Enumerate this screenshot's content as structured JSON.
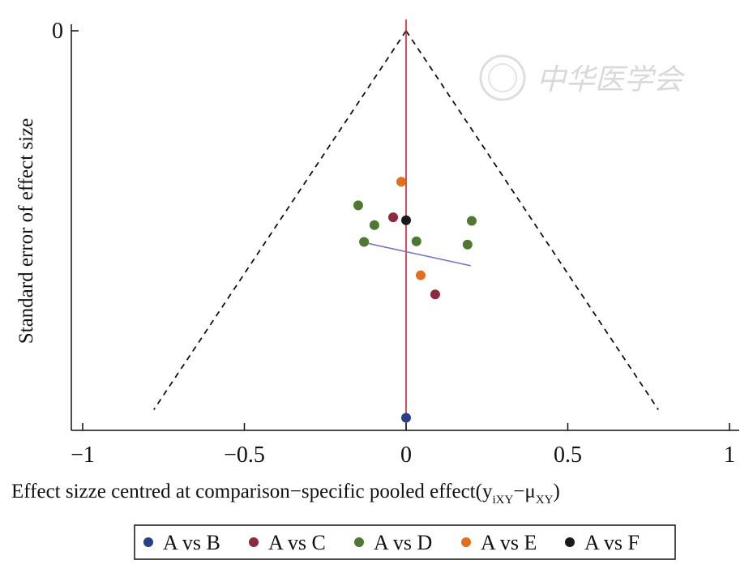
{
  "chart_data": {
    "type": "scatter",
    "title": "",
    "xlabel_main": "Effect sizze centred at comparison−specific pooled effect(y",
    "xlabel_sub1": "iXY",
    "xlabel_mid": "−μ",
    "xlabel_sub2": "XY",
    "xlabel_end": ")",
    "ylabel": "Standard error of effect size",
    "xlim": [
      -1,
      1
    ],
    "ylim": [
      0,
      1.2
    ],
    "y_reversed": true,
    "x_ticks": [
      {
        "value": -1,
        "label": "−1"
      },
      {
        "value": -0.5,
        "label": "−0.5"
      },
      {
        "value": 0,
        "label": "0"
      },
      {
        "value": 0.5,
        "label": "0.5"
      },
      {
        "value": 1,
        "label": "1"
      }
    ],
    "y_ticks": [
      {
        "value": 0,
        "label": "0"
      }
    ],
    "funnel": {
      "apex": [
        0,
        0
      ],
      "left_base": [
        -0.78,
        1.17
      ],
      "right_base": [
        0.78,
        1.17
      ],
      "style": "dashed",
      "color": "#111111"
    },
    "reference_line": {
      "x": 0,
      "color": "#d0202f"
    },
    "regression_line": {
      "from": [
        -0.145,
        0.6505
      ],
      "to": [
        0.2,
        0.7255
      ],
      "color": "#7b73c4"
    },
    "series": [
      {
        "name": "A vs B",
        "color": "#2b3f85",
        "points": [
          [
            0.0,
            1.195
          ]
        ]
      },
      {
        "name": "A vs C",
        "color": "#8e2a3f",
        "points": [
          [
            -0.04,
            0.576
          ],
          [
            0.09,
            0.814
          ]
        ]
      },
      {
        "name": "A vs D",
        "color": "#4f7832",
        "points": [
          [
            -0.148,
            0.539
          ],
          [
            -0.098,
            0.6
          ],
          [
            -0.13,
            0.652
          ],
          [
            0.032,
            0.65
          ],
          [
            0.203,
            0.587
          ],
          [
            0.19,
            0.66
          ]
        ]
      },
      {
        "name": "A vs E",
        "color": "#e07020",
        "points": [
          [
            -0.015,
            0.466
          ],
          [
            0.045,
            0.755
          ]
        ]
      },
      {
        "name": "A vs F",
        "color": "#1a1a1a",
        "points": [
          [
            0.0,
            0.585
          ]
        ]
      }
    ],
    "legend_position": "bottom-center"
  },
  "watermark": {
    "text": "中华医学会"
  }
}
